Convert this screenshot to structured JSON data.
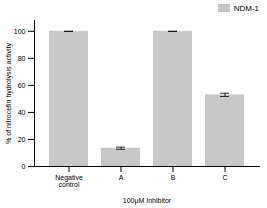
{
  "chart_data": {
    "type": "bar",
    "categories": [
      "Negative\ncontrol",
      "A",
      "B",
      "C"
    ],
    "series": [
      {
        "name": "NDM-1",
        "color": "#c8c8c8",
        "values": [
          100,
          13.5,
          100,
          53
        ],
        "errors": [
          0,
          0.8,
          0,
          1.2
        ]
      }
    ],
    "xlabel": "100μM Inhibitor",
    "ylabel": "% of nitrocefin hydrolysis activity",
    "ylim": [
      0,
      108
    ],
    "yticks": [
      0,
      20,
      40,
      60,
      80,
      100
    ],
    "grid": false,
    "legend": "upper right"
  }
}
